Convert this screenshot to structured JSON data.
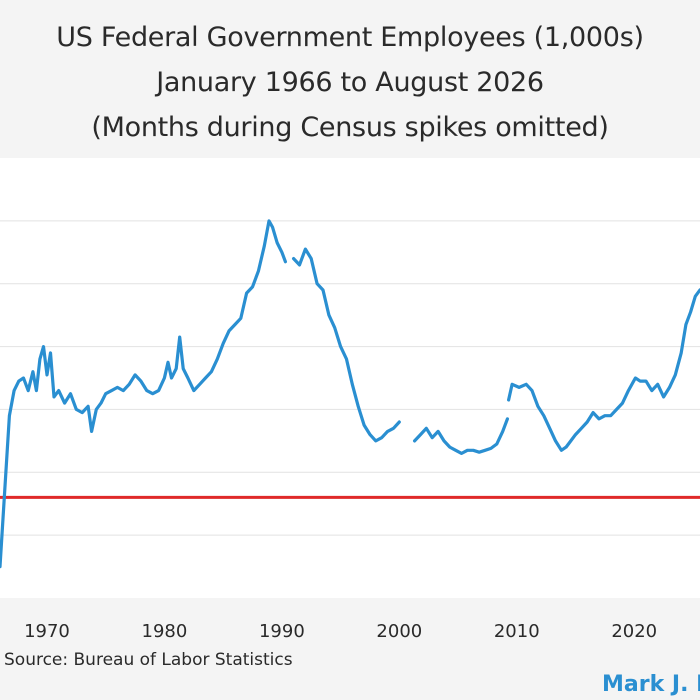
{
  "chart_data": {
    "type": "line",
    "title": "US Federal Government Employees (1,000s)",
    "subtitle": "January 1966 to August 2026",
    "note": "(Months during Census spikes omitted)",
    "xlabel": "",
    "ylabel": "",
    "xlim": [
      1966.0,
      2025.6
    ],
    "ylim": [
      2550,
      3250
    ],
    "x_ticks": [
      1970,
      1980,
      1990,
      2000,
      2010,
      2020
    ],
    "y_grid_values": [
      2650,
      2750,
      2850,
      2950,
      3050,
      3150
    ],
    "grid": "horizontal",
    "line_color": "#2a8fd1",
    "reference_line": {
      "y": 2710,
      "color": "#e02a2a"
    },
    "series": [
      {
        "segments": [
          [
            [
              1966.0,
              2600
            ],
            [
              1966.4,
              2720
            ],
            [
              1966.8,
              2840
            ],
            [
              1967.2,
              2880
            ],
            [
              1967.6,
              2895
            ],
            [
              1968.0,
              2900
            ],
            [
              1968.4,
              2880
            ],
            [
              1968.8,
              2910
            ],
            [
              1969.1,
              2880
            ],
            [
              1969.4,
              2930
            ],
            [
              1969.7,
              2950
            ],
            [
              1970.0,
              2905
            ],
            [
              1970.3,
              2940
            ],
            [
              1970.6,
              2870
            ],
            [
              1971.0,
              2880
            ],
            [
              1971.5,
              2860
            ],
            [
              1972.0,
              2875
            ],
            [
              1972.5,
              2850
            ],
            [
              1973.0,
              2845
            ],
            [
              1973.5,
              2855
            ],
            [
              1973.8,
              2815
            ],
            [
              1974.2,
              2850
            ],
            [
              1974.6,
              2860
            ],
            [
              1975.0,
              2875
            ],
            [
              1975.5,
              2880
            ],
            [
              1976.0,
              2885
            ],
            [
              1976.5,
              2880
            ],
            [
              1977.0,
              2890
            ],
            [
              1977.5,
              2905
            ],
            [
              1978.0,
              2895
            ],
            [
              1978.5,
              2880
            ],
            [
              1979.0,
              2875
            ],
            [
              1979.5,
              2880
            ],
            [
              1980.0,
              2900
            ],
            [
              1980.3,
              2925
            ],
            [
              1980.6,
              2900
            ],
            [
              1981.0,
              2915
            ],
            [
              1981.3,
              2965
            ],
            [
              1981.6,
              2915
            ],
            [
              1982.0,
              2900
            ],
            [
              1982.5,
              2880
            ],
            [
              1983.0,
              2890
            ],
            [
              1983.5,
              2900
            ],
            [
              1984.0,
              2910
            ],
            [
              1984.5,
              2930
            ],
            [
              1985.0,
              2955
            ],
            [
              1985.5,
              2975
            ],
            [
              1986.0,
              2985
            ],
            [
              1986.5,
              2995
            ],
            [
              1987.0,
              3035
            ],
            [
              1987.5,
              3045
            ],
            [
              1988.0,
              3070
            ],
            [
              1988.5,
              3110
            ],
            [
              1988.9,
              3150
            ],
            [
              1989.2,
              3140
            ],
            [
              1989.6,
              3115
            ],
            [
              1990.0,
              3100
            ],
            [
              1990.3,
              3085
            ]
          ],
          [
            [
              1991.0,
              3090
            ],
            [
              1991.5,
              3080
            ],
            [
              1992.0,
              3105
            ],
            [
              1992.5,
              3090
            ],
            [
              1993.0,
              3050
            ],
            [
              1993.5,
              3040
            ],
            [
              1994.0,
              3000
            ],
            [
              1994.5,
              2980
            ],
            [
              1995.0,
              2950
            ],
            [
              1995.5,
              2930
            ],
            [
              1996.0,
              2890
            ],
            [
              1996.5,
              2855
            ],
            [
              1997.0,
              2825
            ],
            [
              1997.5,
              2810
            ],
            [
              1998.0,
              2800
            ],
            [
              1998.5,
              2805
            ],
            [
              1999.0,
              2815
            ],
            [
              1999.5,
              2820
            ],
            [
              2000.0,
              2830
            ]
          ],
          [
            [
              2001.3,
              2800
            ],
            [
              2001.8,
              2810
            ],
            [
              2002.3,
              2820
            ],
            [
              2002.8,
              2805
            ],
            [
              2003.3,
              2815
            ],
            [
              2003.8,
              2800
            ],
            [
              2004.3,
              2790
            ],
            [
              2004.8,
              2785
            ],
            [
              2005.3,
              2780
            ],
            [
              2005.8,
              2785
            ],
            [
              2006.3,
              2785
            ],
            [
              2006.8,
              2782
            ],
            [
              2007.3,
              2785
            ],
            [
              2007.8,
              2788
            ],
            [
              2008.3,
              2795
            ],
            [
              2008.8,
              2815
            ],
            [
              2009.2,
              2835
            ]
          ],
          [
            [
              2009.3,
              2865
            ],
            [
              2009.6,
              2890
            ],
            [
              2010.2,
              2885
            ],
            [
              2010.8,
              2890
            ],
            [
              2011.3,
              2880
            ],
            [
              2011.8,
              2855
            ],
            [
              2012.3,
              2840
            ],
            [
              2012.8,
              2820
            ],
            [
              2013.3,
              2800
            ],
            [
              2013.8,
              2785
            ],
            [
              2014.2,
              2790
            ],
            [
              2014.6,
              2800
            ],
            [
              2015.0,
              2810
            ],
            [
              2015.5,
              2820
            ],
            [
              2016.0,
              2830
            ],
            [
              2016.5,
              2845
            ],
            [
              2017.0,
              2835
            ],
            [
              2017.5,
              2840
            ],
            [
              2018.0,
              2840
            ],
            [
              2018.5,
              2850
            ],
            [
              2019.0,
              2860
            ],
            [
              2019.5,
              2880
            ],
            [
              2020.1,
              2900
            ],
            [
              2020.5,
              2895
            ],
            [
              2021.0,
              2895
            ],
            [
              2021.5,
              2880
            ],
            [
              2022.0,
              2890
            ],
            [
              2022.5,
              2870
            ],
            [
              2023.0,
              2885
            ],
            [
              2023.5,
              2905
            ],
            [
              2024.0,
              2940
            ],
            [
              2024.4,
              2985
            ],
            [
              2024.8,
              3005
            ],
            [
              2025.2,
              3030
            ],
            [
              2025.6,
              3040
            ]
          ]
        ]
      }
    ]
  },
  "footer": {
    "source": "Source: Bureau of Labor Statistics",
    "brand": "Mark J. P"
  }
}
